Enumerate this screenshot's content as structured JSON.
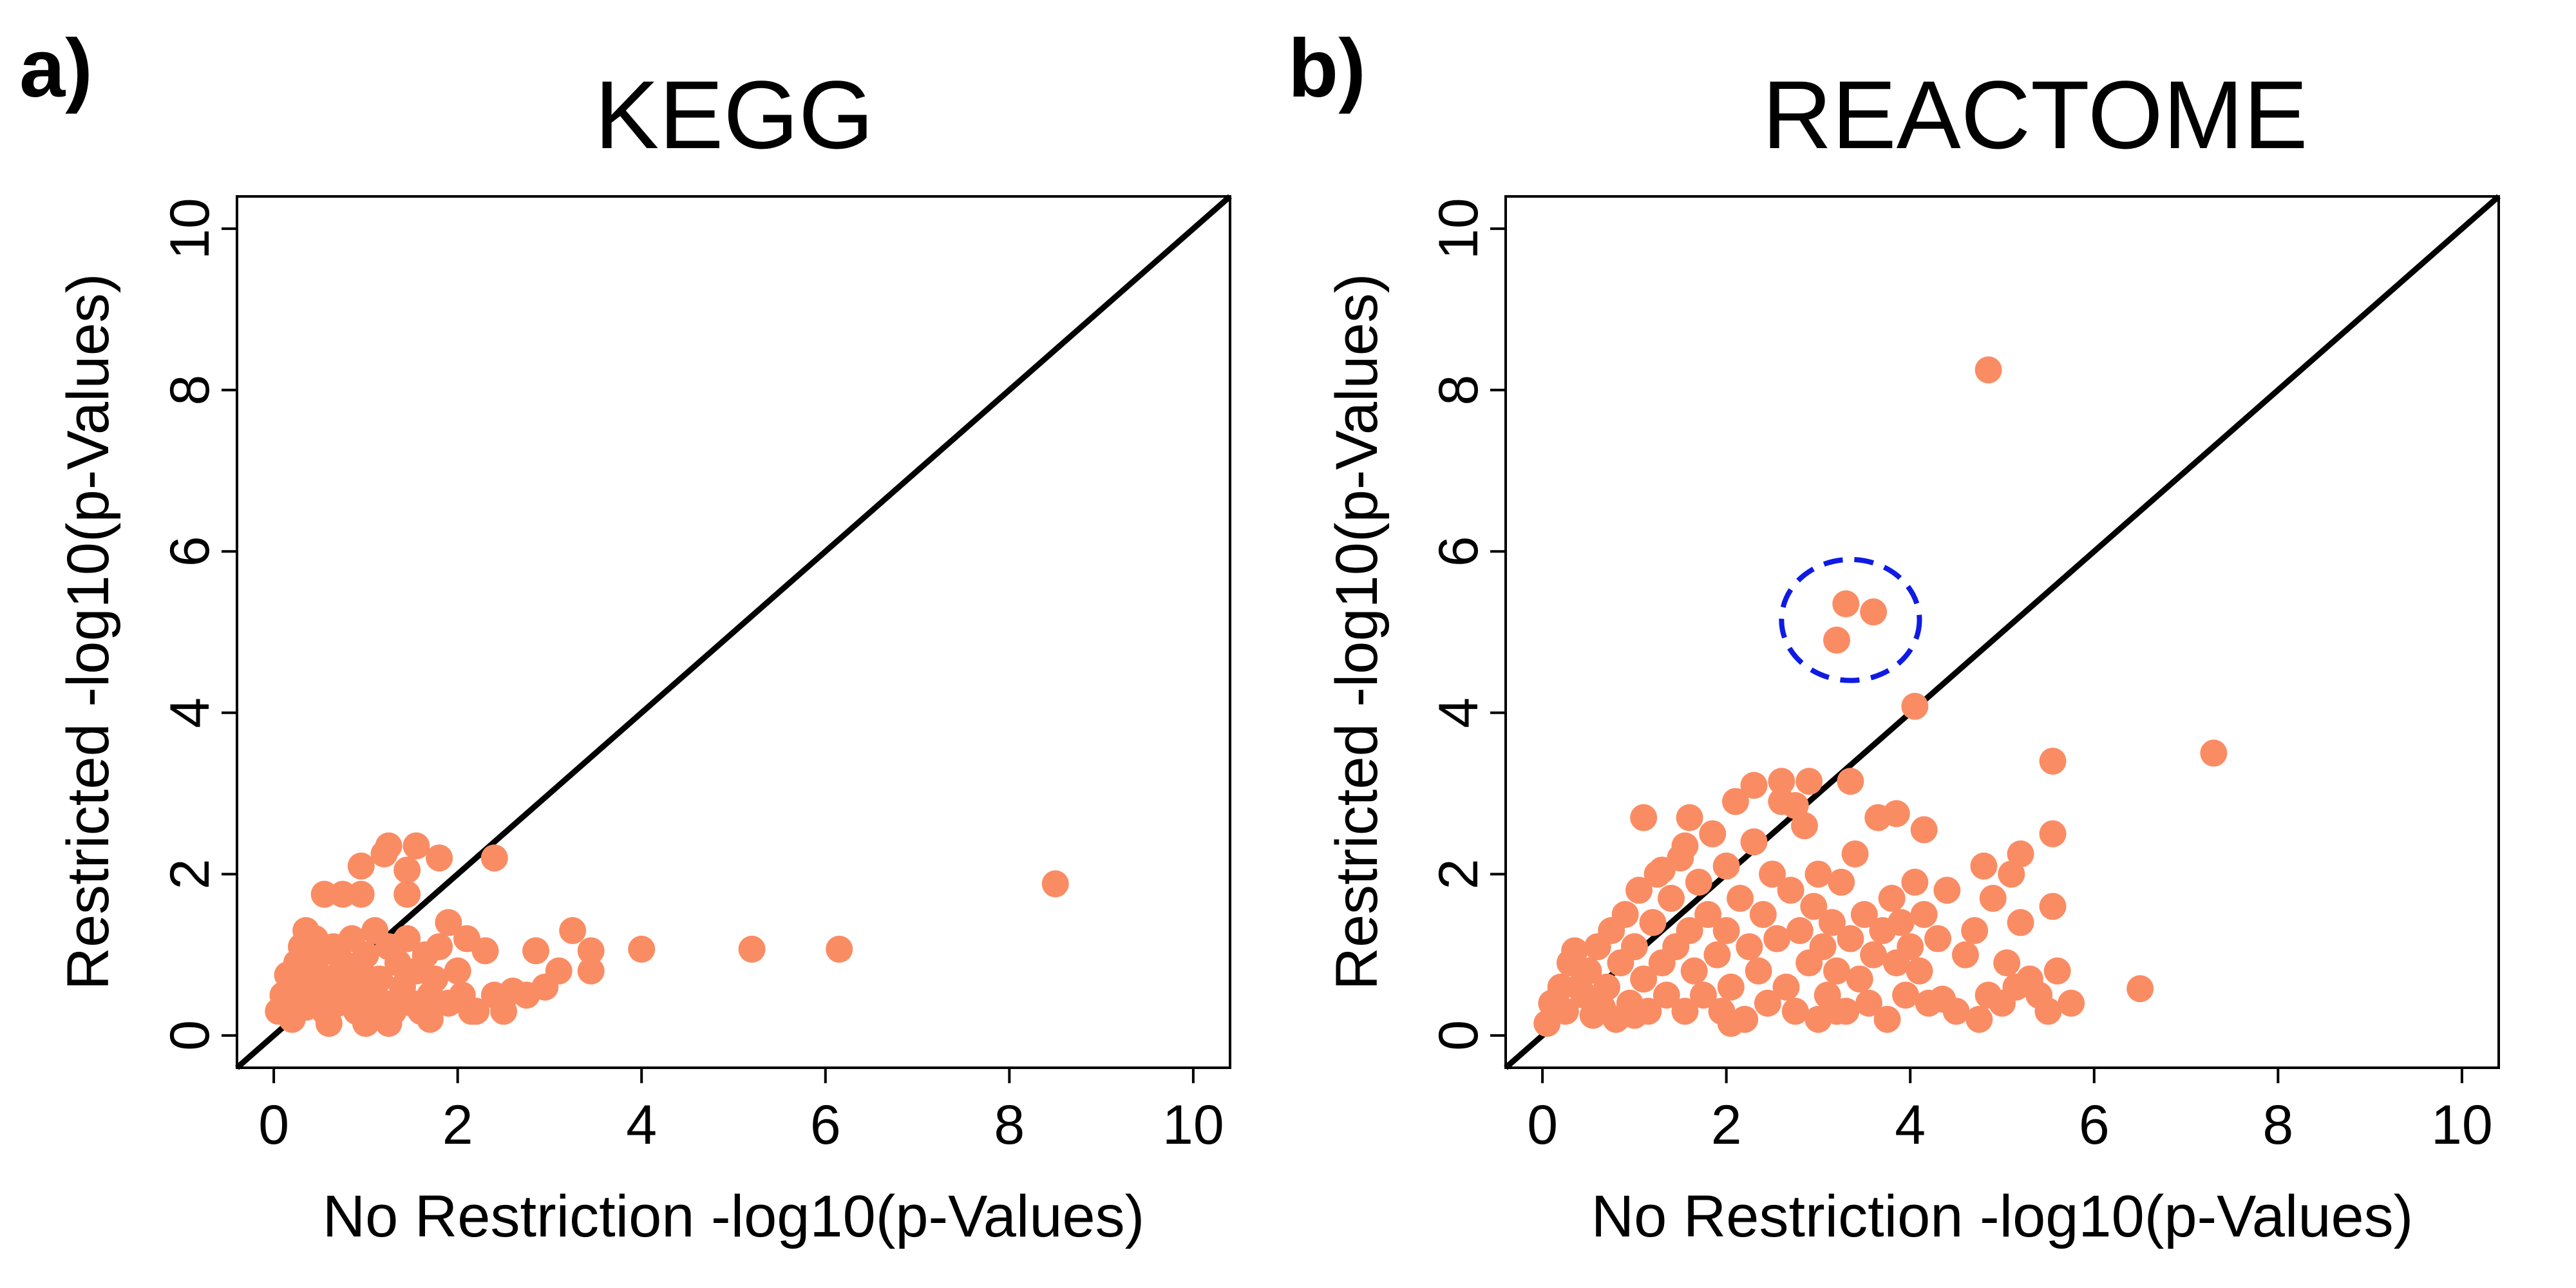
{
  "colors": {
    "points": "#fa8c64",
    "highlight": "#0f1be3",
    "line": "#000000"
  },
  "chart_data": [
    {
      "type": "scatter",
      "panel": "a)",
      "title": "KEGG",
      "xlabel": "No Restriction -log10(p-Values)",
      "ylabel": "Restricted -log10(p-Values)",
      "xlim": [
        -0.4,
        10.4
      ],
      "ylim": [
        -0.4,
        10.4
      ],
      "xticks": [
        0,
        2,
        4,
        6,
        8,
        10
      ],
      "yticks": [
        0,
        2,
        4,
        6,
        8,
        10
      ],
      "reference_line": "y = x",
      "grid": false,
      "points": [
        [
          0.05,
          0.3
        ],
        [
          0.1,
          0.5
        ],
        [
          0.15,
          0.4
        ],
        [
          0.2,
          0.7
        ],
        [
          0.2,
          0.2
        ],
        [
          0.25,
          0.9
        ],
        [
          0.3,
          0.6
        ],
        [
          0.3,
          1.1
        ],
        [
          0.35,
          0.35
        ],
        [
          0.4,
          0.8
        ],
        [
          0.45,
          1.2
        ],
        [
          0.5,
          0.5
        ],
        [
          0.5,
          1.0
        ],
        [
          0.55,
          0.3
        ],
        [
          0.6,
          0.7
        ],
        [
          0.65,
          1.1
        ],
        [
          0.7,
          0.4
        ],
        [
          0.75,
          0.9
        ],
        [
          0.8,
          0.6
        ],
        [
          0.85,
          1.2
        ],
        [
          0.9,
          0.3
        ],
        [
          0.95,
          0.8
        ],
        [
          1.0,
          1.0
        ],
        [
          1.0,
          0.5
        ],
        [
          1.05,
          0.2
        ],
        [
          1.1,
          1.3
        ],
        [
          1.15,
          0.7
        ],
        [
          1.2,
          0.4
        ],
        [
          1.25,
          1.1
        ],
        [
          1.3,
          0.3
        ],
        [
          1.35,
          0.9
        ],
        [
          1.4,
          0.6
        ],
        [
          1.45,
          1.2
        ],
        [
          1.5,
          0.4
        ],
        [
          1.55,
          0.8
        ],
        [
          1.6,
          0.3
        ],
        [
          1.65,
          1.0
        ],
        [
          1.7,
          0.5
        ],
        [
          1.75,
          0.7
        ],
        [
          1.8,
          1.1
        ],
        [
          1.9,
          0.4
        ],
        [
          2.0,
          0.8
        ],
        [
          2.05,
          0.5
        ],
        [
          2.1,
          1.2
        ],
        [
          2.2,
          0.3
        ],
        [
          2.3,
          1.05
        ],
        [
          2.4,
          0.5
        ],
        [
          2.5,
          0.3
        ],
        [
          2.6,
          0.55
        ],
        [
          2.75,
          0.5
        ],
        [
          2.85,
          1.05
        ],
        [
          2.95,
          0.6
        ],
        [
          3.1,
          0.8
        ],
        [
          3.25,
          1.3
        ],
        [
          3.45,
          1.05
        ],
        [
          3.45,
          0.8
        ],
        [
          4.0,
          1.07
        ],
        [
          5.2,
          1.07
        ],
        [
          6.15,
          1.07
        ],
        [
          8.5,
          1.88
        ],
        [
          0.55,
          1.75
        ],
        [
          0.75,
          1.75
        ],
        [
          0.95,
          1.75
        ],
        [
          0.95,
          2.1
        ],
        [
          1.2,
          2.25
        ],
        [
          1.25,
          2.35
        ],
        [
          1.45,
          2.05
        ],
        [
          1.55,
          2.35
        ],
        [
          1.8,
          2.2
        ],
        [
          2.4,
          2.2
        ],
        [
          1.45,
          1.75
        ],
        [
          1.9,
          1.4
        ],
        [
          0.35,
          1.3
        ],
        [
          1.25,
          0.15
        ],
        [
          0.6,
          0.15
        ],
        [
          1.7,
          0.2
        ],
        [
          2.15,
          0.3
        ],
        [
          1.0,
          0.15
        ],
        [
          0.15,
          0.75
        ],
        [
          0.4,
          0.55
        ]
      ]
    },
    {
      "type": "scatter",
      "panel": "b)",
      "title": "REACTOME",
      "xlabel": "No Restriction -log10(p-Values)",
      "ylabel": "Restricted -log10(p-Values)",
      "xlim": [
        -0.4,
        10.4
      ],
      "ylim": [
        -0.4,
        10.4
      ],
      "xticks": [
        0,
        2,
        4,
        6,
        8,
        10
      ],
      "yticks": [
        0,
        2,
        4,
        6,
        8,
        10
      ],
      "reference_line": "y = x",
      "grid": false,
      "annotation": {
        "shape": "dashed-ellipse",
        "cx": 3.35,
        "cy": 5.15,
        "rx": 0.75,
        "ry": 0.75
      },
      "points": [
        [
          4.85,
          8.25
        ],
        [
          3.3,
          5.35
        ],
        [
          3.6,
          5.25
        ],
        [
          3.2,
          4.9
        ],
        [
          4.05,
          4.08
        ],
        [
          7.3,
          3.5
        ],
        [
          5.55,
          3.4
        ],
        [
          5.55,
          2.5
        ],
        [
          4.8,
          2.1
        ],
        [
          0.05,
          0.15
        ],
        [
          0.1,
          0.4
        ],
        [
          0.2,
          0.6
        ],
        [
          0.25,
          0.3
        ],
        [
          0.3,
          0.9
        ],
        [
          0.35,
          1.05
        ],
        [
          0.45,
          0.5
        ],
        [
          0.5,
          0.8
        ],
        [
          0.55,
          0.25
        ],
        [
          0.6,
          1.1
        ],
        [
          0.7,
          0.6
        ],
        [
          0.75,
          1.3
        ],
        [
          0.8,
          0.2
        ],
        [
          0.85,
          0.9
        ],
        [
          0.9,
          1.5
        ],
        [
          0.95,
          0.4
        ],
        [
          1.0,
          1.1
        ],
        [
          1.05,
          1.8
        ],
        [
          1.1,
          0.7
        ],
        [
          1.1,
          2.7
        ],
        [
          1.15,
          0.3
        ],
        [
          1.2,
          1.4
        ],
        [
          1.25,
          2.0
        ],
        [
          1.3,
          0.9
        ],
        [
          1.35,
          0.5
        ],
        [
          1.4,
          1.7
        ],
        [
          1.45,
          1.1
        ],
        [
          1.5,
          2.2
        ],
        [
          1.55,
          0.3
        ],
        [
          1.6,
          1.3
        ],
        [
          1.6,
          2.7
        ],
        [
          1.65,
          0.8
        ],
        [
          1.7,
          1.9
        ],
        [
          1.75,
          0.5
        ],
        [
          1.8,
          1.5
        ],
        [
          1.85,
          2.5
        ],
        [
          1.9,
          1.0
        ],
        [
          1.95,
          0.3
        ],
        [
          2.0,
          2.1
        ],
        [
          2.0,
          1.3
        ],
        [
          2.05,
          0.6
        ],
        [
          2.1,
          2.9
        ],
        [
          2.15,
          1.7
        ],
        [
          2.2,
          0.2
        ],
        [
          2.25,
          1.1
        ],
        [
          2.3,
          2.4
        ],
        [
          2.35,
          0.8
        ],
        [
          2.4,
          1.5
        ],
        [
          2.45,
          0.4
        ],
        [
          2.5,
          2.0
        ],
        [
          2.55,
          1.2
        ],
        [
          2.6,
          2.9
        ],
        [
          2.65,
          0.6
        ],
        [
          2.7,
          1.8
        ],
        [
          2.75,
          0.3
        ],
        [
          2.8,
          1.3
        ],
        [
          2.85,
          2.6
        ],
        [
          2.9,
          0.9
        ],
        [
          2.95,
          1.6
        ],
        [
          3.0,
          0.2
        ],
        [
          3.0,
          2.0
        ],
        [
          3.05,
          1.1
        ],
        [
          3.1,
          0.5
        ],
        [
          3.15,
          1.4
        ],
        [
          3.2,
          0.8
        ],
        [
          3.25,
          1.9
        ],
        [
          3.3,
          0.3
        ],
        [
          3.35,
          1.2
        ],
        [
          3.4,
          2.25
        ],
        [
          3.45,
          0.7
        ],
        [
          3.5,
          1.5
        ],
        [
          3.55,
          0.4
        ],
        [
          3.6,
          1.0
        ],
        [
          3.65,
          2.7
        ],
        [
          3.7,
          1.3
        ],
        [
          3.75,
          0.2
        ],
        [
          3.8,
          1.7
        ],
        [
          3.85,
          0.9
        ],
        [
          3.9,
          1.4
        ],
        [
          3.95,
          0.5
        ],
        [
          4.0,
          1.1
        ],
        [
          4.05,
          1.9
        ],
        [
          4.1,
          0.8
        ],
        [
          4.15,
          1.5
        ],
        [
          4.2,
          0.4
        ],
        [
          4.3,
          1.2
        ],
        [
          4.4,
          1.8
        ],
        [
          4.5,
          0.3
        ],
        [
          4.6,
          1.0
        ],
        [
          4.7,
          1.3
        ],
        [
          4.75,
          0.2
        ],
        [
          4.85,
          0.5
        ],
        [
          4.9,
          1.7
        ],
        [
          5.0,
          0.4
        ],
        [
          5.05,
          0.9
        ],
        [
          5.1,
          2.0
        ],
        [
          5.15,
          0.6
        ],
        [
          5.2,
          1.4
        ],
        [
          5.3,
          0.7
        ],
        [
          5.4,
          0.5
        ],
        [
          5.5,
          0.3
        ],
        [
          5.55,
          1.6
        ],
        [
          5.6,
          0.8
        ],
        [
          5.75,
          0.4
        ],
        [
          6.5,
          0.58
        ],
        [
          2.3,
          3.1
        ],
        [
          2.6,
          3.15
        ],
        [
          2.9,
          3.15
        ],
        [
          3.35,
          3.15
        ],
        [
          3.85,
          2.75
        ],
        [
          4.15,
          2.55
        ],
        [
          1.3,
          2.05
        ],
        [
          1.55,
          2.35
        ],
        [
          2.75,
          2.85
        ],
        [
          3.2,
          0.3
        ],
        [
          2.05,
          0.15
        ],
        [
          4.35,
          0.45
        ],
        [
          5.2,
          2.25
        ],
        [
          0.4,
          0.6
        ],
        [
          0.65,
          0.35
        ],
        [
          1.0,
          0.25
        ]
      ]
    }
  ]
}
